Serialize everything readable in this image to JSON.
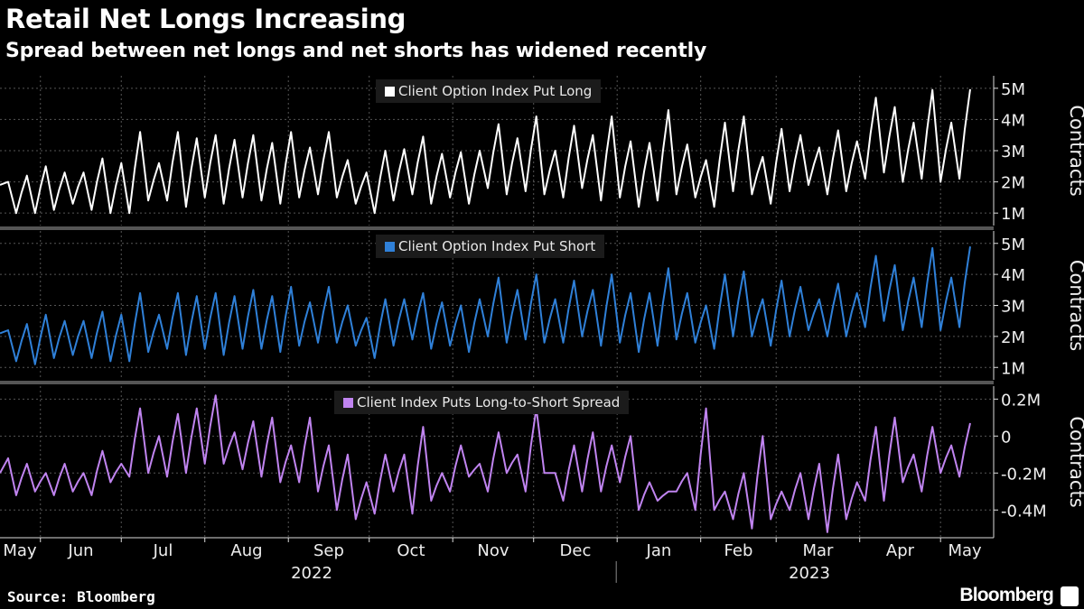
{
  "header": {
    "title": "Retail Net Longs Increasing",
    "subtitle": "Spread between net longs and net shorts has widened recently"
  },
  "footer": {
    "source": "Source: Bloomberg",
    "logo": "Bloomberg"
  },
  "chart_data": [
    {
      "type": "line",
      "legend": "Client Option Index Put Long",
      "color": "#ffffff",
      "ylabel": "Contracts",
      "yticks": [
        "1M",
        "2M",
        "3M",
        "4M",
        "5M"
      ],
      "ytick_values": [
        1,
        2,
        3,
        4,
        5
      ],
      "units": "millions of contracts",
      "x": [
        "2022-05-20",
        "2022-05-27",
        "2022-06-03",
        "2022-06-10",
        "2022-06-17",
        "2022-06-24",
        "2022-07-01",
        "2022-07-08",
        "2022-07-15",
        "2022-07-22",
        "2022-07-29",
        "2022-08-05",
        "2022-08-12",
        "2022-08-19",
        "2022-08-26",
        "2022-09-02",
        "2022-09-09",
        "2022-09-16",
        "2022-09-23",
        "2022-09-30",
        "2022-10-07",
        "2022-10-14",
        "2022-10-21",
        "2022-10-28",
        "2022-11-04",
        "2022-11-11",
        "2022-11-18",
        "2022-11-25",
        "2022-12-02",
        "2022-12-09",
        "2022-12-16",
        "2022-12-23",
        "2022-12-30",
        "2023-01-06",
        "2023-01-13",
        "2023-01-20",
        "2023-01-27",
        "2023-02-03",
        "2023-02-10",
        "2023-02-17",
        "2023-02-24",
        "2023-03-03",
        "2023-03-10",
        "2023-03-17",
        "2023-03-24",
        "2023-03-31",
        "2023-04-07",
        "2023-04-14",
        "2023-04-21",
        "2023-04-28",
        "2023-05-05",
        "2023-05-12"
      ],
      "weekly_high": [
        2.0,
        2.2,
        2.5,
        2.3,
        2.3,
        2.75,
        2.6,
        3.6,
        2.6,
        3.6,
        3.4,
        3.5,
        3.35,
        3.5,
        3.25,
        3.6,
        3.1,
        3.6,
        2.7,
        2.3,
        3.0,
        3.05,
        3.45,
        2.9,
        2.95,
        3.0,
        3.85,
        3.4,
        4.1,
        3.0,
        3.8,
        3.5,
        4.1,
        3.3,
        3.25,
        4.3,
        3.2,
        2.7,
        3.9,
        4.1,
        2.8,
        3.7,
        3.5,
        3.1,
        3.65,
        3.3,
        4.7,
        4.4,
        3.9,
        4.95,
        3.9,
        4.97
      ],
      "weekly_low": [
        1.0,
        1.0,
        1.1,
        1.3,
        1.1,
        1.0,
        1.0,
        1.4,
        1.4,
        1.2,
        1.5,
        1.3,
        1.5,
        1.4,
        1.3,
        1.5,
        1.6,
        1.5,
        1.3,
        1.0,
        1.4,
        1.6,
        1.3,
        1.5,
        1.3,
        1.8,
        1.6,
        1.7,
        1.6,
        1.5,
        1.8,
        1.4,
        1.5,
        1.2,
        1.4,
        1.6,
        1.5,
        1.2,
        1.7,
        1.6,
        1.3,
        1.7,
        1.9,
        1.6,
        1.7,
        2.1,
        2.3,
        2.0,
        2.1,
        2.0,
        2.1,
        2.1
      ],
      "ylim": [
        0.6,
        5.4
      ]
    },
    {
      "type": "line",
      "legend": "Client Option Index Put Short",
      "color": "#2f80d8",
      "ylabel": "Contracts",
      "yticks": [
        "1M",
        "2M",
        "3M",
        "4M",
        "5M"
      ],
      "ytick_values": [
        1,
        2,
        3,
        4,
        5
      ],
      "units": "millions of contracts",
      "weekly_high": [
        2.2,
        2.4,
        2.7,
        2.5,
        2.5,
        2.8,
        2.7,
        3.4,
        2.7,
        3.4,
        3.3,
        3.4,
        3.3,
        3.5,
        3.3,
        3.6,
        3.1,
        3.6,
        3.0,
        2.6,
        3.2,
        3.2,
        3.4,
        3.1,
        3.0,
        3.2,
        3.9,
        3.5,
        4.0,
        3.2,
        3.8,
        3.5,
        4.0,
        3.4,
        3.4,
        4.2,
        3.4,
        3.0,
        4.0,
        4.1,
        3.2,
        3.8,
        3.6,
        3.2,
        3.7,
        3.4,
        4.6,
        4.3,
        3.9,
        4.85,
        3.9,
        4.9
      ],
      "weekly_low": [
        1.2,
        1.1,
        1.3,
        1.4,
        1.3,
        1.2,
        1.2,
        1.5,
        1.6,
        1.4,
        1.6,
        1.4,
        1.6,
        1.6,
        1.5,
        1.7,
        1.8,
        1.8,
        1.7,
        1.3,
        1.7,
        1.9,
        1.6,
        1.7,
        1.5,
        2.0,
        1.8,
        1.9,
        1.8,
        1.8,
        2.0,
        1.7,
        1.8,
        1.5,
        1.7,
        1.9,
        1.8,
        1.6,
        2.0,
        2.0,
        1.7,
        2.0,
        2.2,
        2.0,
        2.0,
        2.3,
        2.5,
        2.2,
        2.3,
        2.2,
        2.3,
        2.4
      ],
      "ylim": [
        0.6,
        5.4
      ]
    },
    {
      "type": "line",
      "legend": "Client Index Puts Long-to-Short Spread",
      "color": "#c084f0",
      "ylabel": "Contracts",
      "yticks": [
        "-0.4M",
        "-0.2M",
        "0",
        "0.2M"
      ],
      "ytick_values": [
        -0.4,
        -0.2,
        0,
        0.2
      ],
      "units": "millions of contracts",
      "weekly_high": [
        -0.12,
        -0.15,
        -0.2,
        -0.15,
        -0.2,
        -0.08,
        -0.15,
        0.15,
        0.0,
        0.12,
        0.15,
        0.22,
        0.02,
        0.08,
        0.1,
        -0.05,
        0.1,
        -0.05,
        -0.1,
        -0.25,
        -0.1,
        -0.1,
        0.05,
        -0.2,
        -0.05,
        -0.15,
        0.02,
        -0.1,
        0.15,
        -0.2,
        -0.05,
        0.02,
        -0.05,
        0.0,
        -0.25,
        -0.3,
        -0.2,
        0.15,
        -0.3,
        -0.2,
        0.0,
        -0.3,
        -0.2,
        -0.15,
        -0.1,
        -0.25,
        0.05,
        0.1,
        -0.1,
        0.05,
        -0.05,
        0.07
      ],
      "weekly_low": [
        -0.32,
        -0.3,
        -0.32,
        -0.3,
        -0.32,
        -0.25,
        -0.22,
        -0.2,
        -0.22,
        -0.2,
        -0.15,
        -0.15,
        -0.18,
        -0.22,
        -0.25,
        -0.25,
        -0.3,
        -0.4,
        -0.45,
        -0.42,
        -0.3,
        -0.42,
        -0.35,
        -0.3,
        -0.22,
        -0.3,
        -0.2,
        -0.3,
        -0.2,
        -0.35,
        -0.3,
        -0.3,
        -0.25,
        -0.4,
        -0.35,
        -0.3,
        -0.4,
        -0.4,
        -0.45,
        -0.5,
        -0.45,
        -0.4,
        -0.45,
        -0.52,
        -0.45,
        -0.35,
        -0.35,
        -0.25,
        -0.3,
        -0.2,
        -0.22,
        -0.28
      ],
      "ylim": [
        -0.55,
        0.27
      ]
    }
  ],
  "xaxis": {
    "months": [
      "May",
      "Jun",
      "Jul",
      "Aug",
      "Sep",
      "Oct",
      "Nov",
      "Dec",
      "Jan",
      "Feb",
      "Mar",
      "Apr",
      "May"
    ],
    "month_dates": [
      "2022-05-01",
      "2022-06-01",
      "2022-07-01",
      "2022-08-01",
      "2022-09-01",
      "2022-10-01",
      "2022-11-01",
      "2022-12-01",
      "2023-01-01",
      "2023-02-01",
      "2023-03-01",
      "2023-04-01",
      "2023-05-01"
    ],
    "years": [
      "2022",
      "2023"
    ],
    "range": [
      "2022-05-17",
      "2023-05-13"
    ],
    "grid": true
  }
}
